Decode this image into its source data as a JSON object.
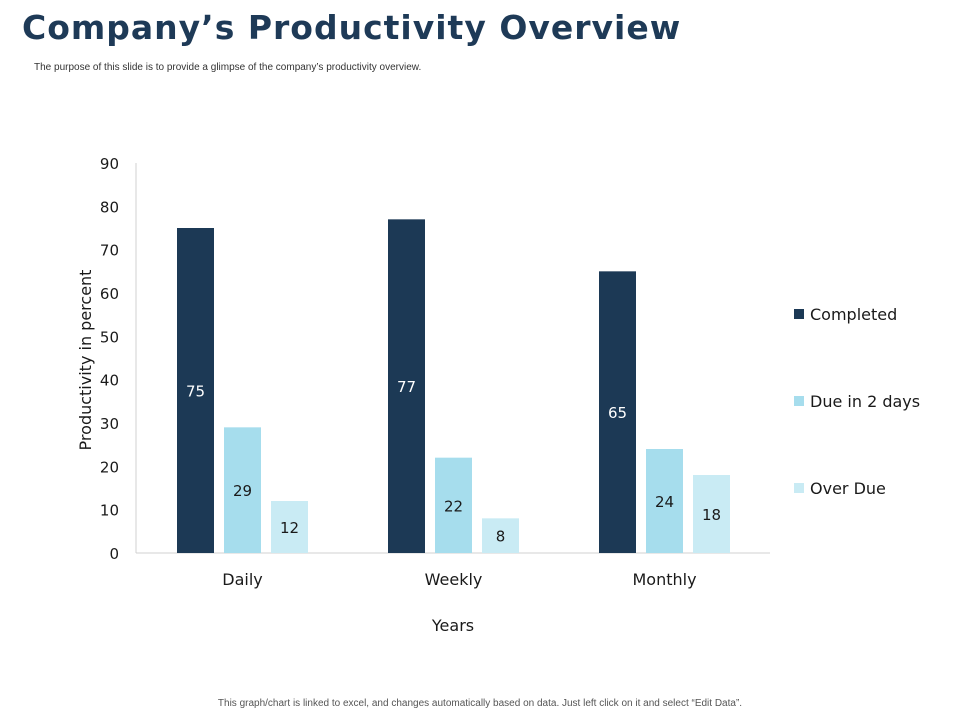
{
  "slide": {
    "title": "Company’s Productivity Overview",
    "subtitle": "The purpose of this slide is to provide a glimpse of the company’s productivity overview.",
    "footer": "This graph/chart is linked to excel, and changes automatically based on data. Just left click on it and select “Edit Data”."
  },
  "colors": {
    "title": "#1e3a57",
    "completed": "#1c3955",
    "due": "#a6dded",
    "overdue": "#c9ebf4",
    "axis": "#d0d0d0"
  },
  "chart_data": {
    "type": "bar",
    "title": "",
    "xlabel": "Years",
    "ylabel": "Productivity in percent",
    "categories": [
      "Daily",
      "Weekly",
      "Monthly"
    ],
    "series": [
      {
        "name": "Completed",
        "values": [
          75,
          77,
          65
        ]
      },
      {
        "name": "Due in 2 days",
        "values": [
          29,
          22,
          24
        ]
      },
      {
        "name": "Over Due",
        "values": [
          12,
          8,
          18
        ]
      }
    ],
    "ylim": [
      0,
      90
    ],
    "yticks": [
      0,
      10,
      20,
      30,
      40,
      50,
      60,
      70,
      80,
      90
    ],
    "grid": false,
    "legend": "right"
  }
}
